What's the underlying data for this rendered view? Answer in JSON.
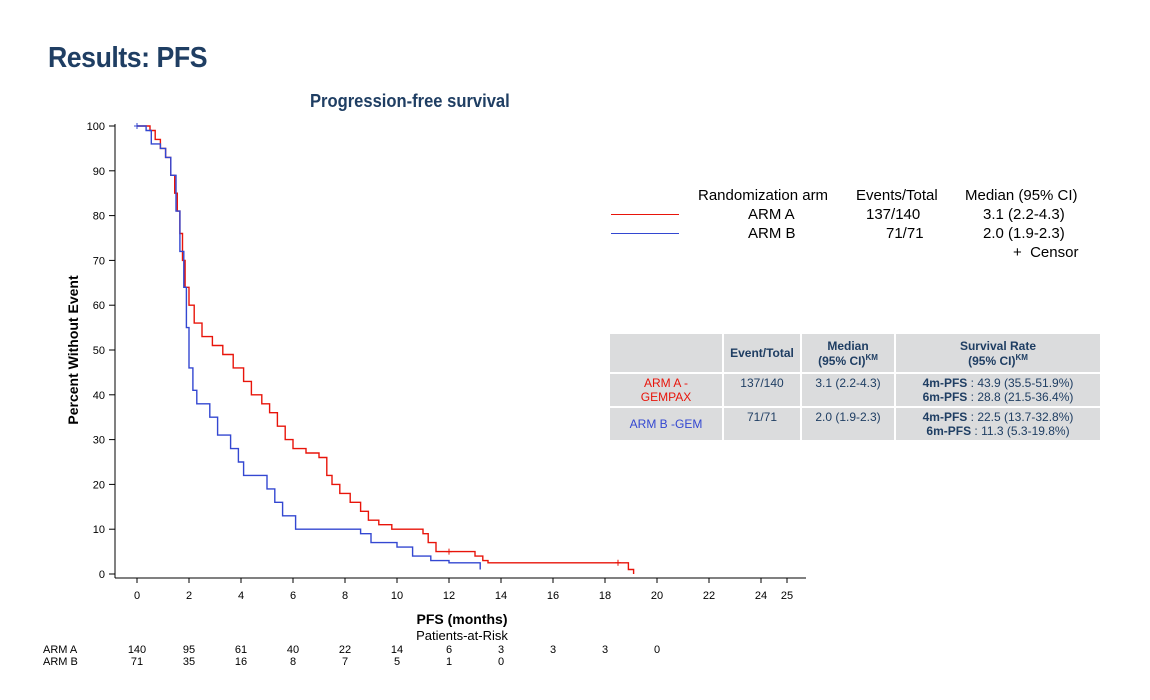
{
  "slide": {
    "title": "Results: PFS"
  },
  "chart_data": {
    "type": "line",
    "subtype": "kaplan-meier",
    "title": "Progression-free survival",
    "xlabel": "PFS (months)",
    "ylabel": "Percent Without Event",
    "xlim": [
      0,
      25
    ],
    "ylim": [
      0,
      100
    ],
    "xticks": [
      0,
      2,
      4,
      6,
      8,
      10,
      12,
      14,
      16,
      18,
      20,
      22,
      24,
      25
    ],
    "yticks": [
      0,
      10,
      20,
      30,
      40,
      50,
      60,
      70,
      80,
      90,
      100
    ],
    "series": [
      {
        "name": "ARM A",
        "color": "#e8140a",
        "points": [
          [
            0,
            100
          ],
          [
            0.4,
            100
          ],
          [
            0.5,
            99
          ],
          [
            0.7,
            97
          ],
          [
            0.9,
            95
          ],
          [
            1.1,
            93
          ],
          [
            1.3,
            89
          ],
          [
            1.45,
            85
          ],
          [
            1.55,
            81
          ],
          [
            1.65,
            76
          ],
          [
            1.75,
            70
          ],
          [
            1.85,
            64
          ],
          [
            2.0,
            60
          ],
          [
            2.2,
            56
          ],
          [
            2.5,
            53
          ],
          [
            2.9,
            51
          ],
          [
            3.3,
            49
          ],
          [
            3.7,
            46
          ],
          [
            4.1,
            43
          ],
          [
            4.4,
            40
          ],
          [
            4.8,
            38
          ],
          [
            5.1,
            36
          ],
          [
            5.4,
            33
          ],
          [
            5.7,
            30
          ],
          [
            6.0,
            28
          ],
          [
            6.5,
            27
          ],
          [
            7.0,
            26
          ],
          [
            7.3,
            22
          ],
          [
            7.5,
            20
          ],
          [
            7.8,
            18
          ],
          [
            8.2,
            16
          ],
          [
            8.6,
            14
          ],
          [
            8.9,
            12
          ],
          [
            9.3,
            11
          ],
          [
            9.8,
            10
          ],
          [
            10.7,
            10
          ],
          [
            11.0,
            9
          ],
          [
            11.2,
            7
          ],
          [
            11.5,
            5
          ],
          [
            12.3,
            5
          ],
          [
            13.0,
            4
          ],
          [
            13.3,
            3
          ],
          [
            13.5,
            2.5
          ],
          [
            18.7,
            2.5
          ],
          [
            18.9,
            1
          ],
          [
            19.1,
            0
          ]
        ],
        "censor": [
          [
            0,
            100
          ],
          [
            12.0,
            5
          ],
          [
            18.5,
            2.5
          ]
        ]
      },
      {
        "name": "ARM B",
        "color": "#3347d1",
        "points": [
          [
            0,
            100
          ],
          [
            0.35,
            99
          ],
          [
            0.55,
            96
          ],
          [
            0.9,
            95
          ],
          [
            1.1,
            93
          ],
          [
            1.3,
            89
          ],
          [
            1.5,
            81
          ],
          [
            1.65,
            72
          ],
          [
            1.8,
            64
          ],
          [
            1.9,
            55
          ],
          [
            2.0,
            46
          ],
          [
            2.15,
            41
          ],
          [
            2.3,
            38
          ],
          [
            2.8,
            35
          ],
          [
            3.1,
            31
          ],
          [
            3.6,
            28
          ],
          [
            3.9,
            25
          ],
          [
            4.1,
            22
          ],
          [
            5.0,
            19
          ],
          [
            5.3,
            16
          ],
          [
            5.6,
            13
          ],
          [
            6.1,
            10
          ],
          [
            7.5,
            10
          ],
          [
            8.6,
            9
          ],
          [
            9.0,
            7
          ],
          [
            10.0,
            6
          ],
          [
            10.6,
            4
          ],
          [
            11.3,
            3
          ],
          [
            12.0,
            2.5
          ],
          [
            13.2,
            1
          ]
        ],
        "censor": [
          [
            0,
            100
          ]
        ]
      }
    ],
    "legend": {
      "header": {
        "arm": "Randomization arm",
        "events": "Events/Total",
        "median": "Median (95% CI)"
      },
      "rows": [
        {
          "arm": "ARM A",
          "events": "137/140",
          "median": "3.1 (2.2-4.3)"
        },
        {
          "arm": "ARM B",
          "events": "71/71",
          "median": "2.0 (1.9-2.3)"
        }
      ],
      "censor_label": "+  Censor"
    },
    "at_risk": {
      "title": "Patients-at-Risk",
      "times": [
        0,
        2,
        4,
        6,
        8,
        10,
        12,
        14,
        16,
        18,
        20
      ],
      "rows": [
        {
          "label": "ARM A",
          "values": [
            "140",
            "95",
            "61",
            "40",
            "22",
            "14",
            "6",
            "3",
            "3",
            "3",
            "0"
          ]
        },
        {
          "label": "ARM B",
          "values": [
            "71",
            "35",
            "16",
            "8",
            "7",
            "5",
            "1",
            "0"
          ]
        }
      ]
    }
  },
  "summary_table": {
    "headers": {
      "events": "Event/Total",
      "median": "Median",
      "median_sub": "(95% CI)",
      "km": "KM",
      "survival": "Survival Rate",
      "survival_sub": "(95% CI)"
    },
    "arm_a": {
      "label": "ARM A - GEMPAX",
      "events": "137/140",
      "median": "3.1 (2.2-4.3)",
      "rate1_label": "4m-PFS",
      "rate1_value": " : 43.9 (35.5-51.9%)",
      "rate2_label": "6m-PFS",
      "rate2_value": " : 28.8 (21.5-36.4%)"
    },
    "arm_b": {
      "label": "ARM B -GEM",
      "events": "71/71",
      "median": "2.0 (1.9-2.3)",
      "rate1_label": "4m-PFS",
      "rate1_value": " : 22.5 (13.7-32.8%)",
      "rate2_label": "6m-PFS",
      "rate2_value": " : 11.3 (5.3-19.8%)"
    }
  }
}
